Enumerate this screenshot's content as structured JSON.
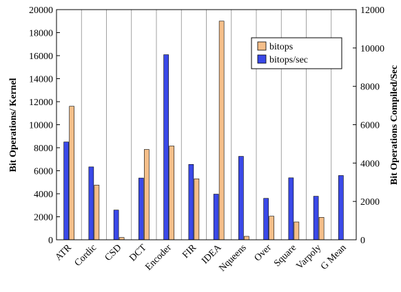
{
  "chart_data": {
    "type": "bar",
    "categories": [
      "ATR",
      "Cordic",
      "CSD",
      "DCT",
      "Encoder",
      "FIR",
      "IDEA",
      "Nqueens",
      "Over",
      "Square",
      "Varpoly",
      "G Mean"
    ],
    "series": [
      {
        "name": "bitops/sec",
        "axis": "right",
        "color": "#3a49e8",
        "values": [
          5100,
          3800,
          1550,
          3220,
          9650,
          3930,
          2380,
          4350,
          2160,
          3230,
          2270,
          3350
        ]
      },
      {
        "name": "bitops",
        "axis": "left",
        "color": "#f5bf8a",
        "values": [
          11600,
          4750,
          200,
          7850,
          8150,
          5300,
          19000,
          300,
          2050,
          1550,
          1950,
          0
        ]
      }
    ],
    "ylabel": "Bit Operations/ Kernel",
    "ylabel_right": "Bit Operations Compiled/Sec",
    "ylim": [
      0,
      20000
    ],
    "ylim_right": [
      0,
      12000
    ],
    "yticks": [
      0,
      2000,
      4000,
      6000,
      8000,
      10000,
      12000,
      14000,
      16000,
      18000,
      20000
    ],
    "yticks_right": [
      0,
      2000,
      4000,
      6000,
      8000,
      10000,
      12000
    ],
    "grid": "vertical category dividers",
    "legend": {
      "position": "top-right",
      "entries": [
        "bitops",
        "bitops/sec"
      ]
    }
  }
}
